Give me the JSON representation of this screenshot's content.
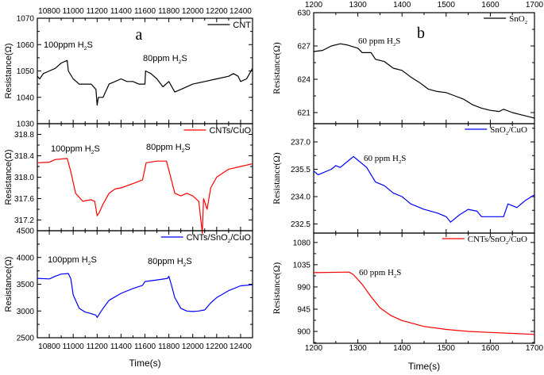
{
  "chart_data": [
    {
      "type": "line",
      "panel_letter": "a",
      "xlabel": "Time(s)",
      "xlim": [
        10700,
        12500
      ],
      "xticks": [
        10800,
        11000,
        11200,
        11400,
        11600,
        11800,
        12000,
        12200,
        12400
      ],
      "subplots": [
        {
          "ylabel": "Resistance(Ω)",
          "ylim": [
            1030,
            1070
          ],
          "yticks": [
            1030,
            1040,
            1050,
            1060,
            1070
          ],
          "series": [
            {
              "name": "CNT",
              "color": "#000000",
              "x": [
                10700,
                10720,
                10750,
                10800,
                10850,
                10900,
                10950,
                10960,
                11000,
                11050,
                11100,
                11150,
                11190,
                11200,
                11210,
                11250,
                11300,
                11350,
                11400,
                11450,
                11500,
                11550,
                11600,
                11605,
                11650,
                11700,
                11750,
                11800,
                11850,
                11900,
                12000,
                12100,
                12200,
                12300,
                12340,
                12380,
                12400,
                12450,
                12500
              ],
              "y": [
                1048,
                1047,
                1049,
                1050,
                1051,
                1053,
                1054,
                1050,
                1047,
                1045,
                1045,
                1045,
                1043,
                1037,
                1040,
                1040,
                1045,
                1046,
                1047,
                1046,
                1046,
                1045,
                1045,
                1050,
                1049,
                1047,
                1044,
                1046,
                1042,
                1043,
                1045,
                1046,
                1047,
                1048,
                1049,
                1048,
                1046,
                1047,
                1051
              ]
            }
          ],
          "annotations": [
            "100ppm H₂S",
            "80ppm H₂S"
          ]
        },
        {
          "ylabel": "Resistance(Ω)",
          "ylim": [
            317.0,
            319.0
          ],
          "yticks": [
            317.2,
            317.6,
            318.0,
            318.4,
            318.8
          ],
          "series": [
            {
              "name": "CNTs/CuO",
              "color": "#ff0000",
              "x": [
                10700,
                10800,
                10850,
                10950,
                10980,
                11020,
                11080,
                11150,
                11180,
                11200,
                11220,
                11250,
                11300,
                11350,
                11400,
                11500,
                11580,
                11610,
                11700,
                11780,
                11810,
                11850,
                11900,
                11950,
                12000,
                12050,
                12080,
                12090,
                12120,
                12150,
                12200,
                12300,
                12400,
                12500
              ],
              "y": [
                318.27,
                318.28,
                318.33,
                318.35,
                318.1,
                317.7,
                317.55,
                317.58,
                317.55,
                317.28,
                317.35,
                317.5,
                317.7,
                317.78,
                317.8,
                317.88,
                317.95,
                318.27,
                318.3,
                318.3,
                318.05,
                317.7,
                317.65,
                317.7,
                317.65,
                317.55,
                316.95,
                317.6,
                317.4,
                317.8,
                318.0,
                318.15,
                318.2,
                318.25
              ]
            }
          ],
          "annotations": [
            "100ppm H₂S",
            "80ppm H₂S"
          ]
        },
        {
          "ylabel": "Resistance(Ω)",
          "ylim": [
            2500,
            4500
          ],
          "yticks": [
            2500,
            3000,
            3500,
            4000,
            4500
          ],
          "series": [
            {
              "name": "CNTs/SnO₂/CuO",
              "color": "#0000ff",
              "x": [
                10700,
                10800,
                10850,
                10900,
                10960,
                10980,
                11000,
                11050,
                11100,
                11150,
                11190,
                11200,
                11250,
                11300,
                11400,
                11500,
                11580,
                11600,
                11700,
                11790,
                11800,
                11820,
                11850,
                11900,
                11950,
                12000,
                12050,
                12100,
                12150,
                12200,
                12300,
                12400,
                12500
              ],
              "y": [
                3610,
                3600,
                3650,
                3690,
                3700,
                3600,
                3300,
                3050,
                2980,
                2950,
                2920,
                2880,
                3050,
                3200,
                3330,
                3420,
                3480,
                3550,
                3580,
                3610,
                3650,
                3500,
                3250,
                3050,
                3000,
                2990,
                3000,
                3020,
                3150,
                3250,
                3380,
                3470,
                3490
              ]
            }
          ],
          "annotations": [
            "100ppm H₂S",
            "80ppm H₂S"
          ]
        }
      ]
    },
    {
      "type": "line",
      "panel_letter": "b",
      "xlabel": "Time(s)",
      "xlim": [
        1200,
        1700
      ],
      "xticks": [
        1200,
        1300,
        1400,
        1500,
        1600,
        1700
      ],
      "subplots": [
        {
          "ylabel": "Resistance(Ω)",
          "ylim": [
            620,
            630
          ],
          "yticks": [
            621,
            624,
            627,
            630
          ],
          "series": [
            {
              "name": "SnO₂",
              "color": "#000000",
              "x": [
                1200,
                1220,
                1240,
                1260,
                1275,
                1300,
                1310,
                1330,
                1340,
                1360,
                1380,
                1400,
                1420,
                1440,
                1460,
                1480,
                1500,
                1520,
                1540,
                1560,
                1580,
                1600,
                1620,
                1630,
                1650,
                1670,
                1690,
                1700
              ],
              "y": [
                626.5,
                626.6,
                627,
                627.2,
                627.1,
                626.8,
                626.4,
                626.4,
                625.8,
                625.6,
                625,
                624.8,
                624.2,
                623.7,
                623.1,
                622.9,
                622.8,
                622.5,
                622.2,
                621.7,
                621.4,
                621.2,
                621.1,
                621.3,
                621,
                620.8,
                620.6,
                620.5
              ]
            }
          ],
          "annotations": [
            "60 ppm H₂S"
          ]
        },
        {
          "ylabel": "Resistance(Ω)",
          "ylim": [
            232,
            238
          ],
          "yticks": [
            232.5,
            234.0,
            235.5,
            237.0
          ],
          "series": [
            {
              "name": "SnO₂/CuO",
              "color": "#0000ff",
              "x": [
                1200,
                1210,
                1240,
                1250,
                1260,
                1280,
                1290,
                1300,
                1320,
                1340,
                1360,
                1380,
                1400,
                1420,
                1450,
                1480,
                1500,
                1510,
                1530,
                1550,
                1570,
                1580,
                1600,
                1630,
                1640,
                1660,
                1680,
                1700
              ],
              "y": [
                235.4,
                235.2,
                235.5,
                235.7,
                235.6,
                236.0,
                236.2,
                236.0,
                235.6,
                234.8,
                234.6,
                234.2,
                234.0,
                233.6,
                233.3,
                233.1,
                232.9,
                232.6,
                233.0,
                233.3,
                233.2,
                232.9,
                232.9,
                232.9,
                233.6,
                233.4,
                233.8,
                234.1
              ]
            }
          ],
          "annotations": [
            "60 ppm H₂S"
          ]
        },
        {
          "ylabel": "Resistance(Ω)",
          "ylim": [
            876,
            1099
          ],
          "yticks": [
            900,
            945,
            990,
            1035,
            1080
          ],
          "series": [
            {
              "name": "CNTs/SnO₂/CuO",
              "color": "#ff0000",
              "x": [
                1200,
                1280,
                1290,
                1310,
                1330,
                1350,
                1375,
                1400,
                1450,
                1500,
                1550,
                1600,
                1650,
                1700
              ],
              "y": [
                1019,
                1020,
                1015,
                995,
                970,
                948,
                932,
                922,
                910,
                904,
                900,
                898,
                896,
                894
              ]
            }
          ],
          "annotations": [
            "60 ppm H₂S"
          ]
        }
      ]
    }
  ]
}
